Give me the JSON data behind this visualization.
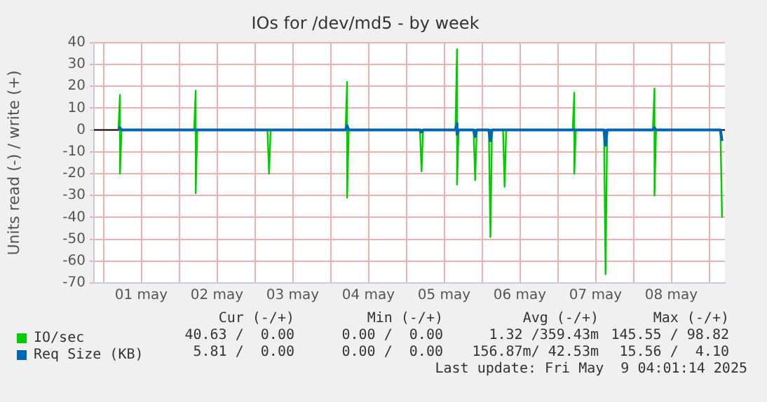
{
  "chart_data": {
    "type": "line",
    "title": "IOs for /dev/md5 - by week",
    "ylabel": "Units read (-) / write (+)",
    "xlim": [
      "2025-04-30T21:00",
      "2025-05-09T05:00"
    ],
    "xticks": [
      {
        "value": "2025-05-01T00:00",
        "label": null
      },
      {
        "value": "2025-05-01T12:00",
        "label": "01 may"
      },
      {
        "value": "2025-05-02T00:00",
        "label": null
      },
      {
        "value": "2025-05-02T12:00",
        "label": "02 may"
      },
      {
        "value": "2025-05-03T00:00",
        "label": null
      },
      {
        "value": "2025-05-03T12:00",
        "label": "03 may"
      },
      {
        "value": "2025-05-04T00:00",
        "label": null
      },
      {
        "value": "2025-05-04T12:00",
        "label": "04 may"
      },
      {
        "value": "2025-05-05T00:00",
        "label": null
      },
      {
        "value": "2025-05-05T12:00",
        "label": "05 may"
      },
      {
        "value": "2025-05-06T00:00",
        "label": null
      },
      {
        "value": "2025-05-06T12:00",
        "label": "06 may"
      },
      {
        "value": "2025-05-07T00:00",
        "label": null
      },
      {
        "value": "2025-05-07T12:00",
        "label": "07 may"
      },
      {
        "value": "2025-05-08T00:00",
        "label": null
      },
      {
        "value": "2025-05-08T12:00",
        "label": "08 may"
      },
      {
        "value": "2025-05-09T00:00",
        "label": null
      }
    ],
    "ylim": [
      -70,
      40
    ],
    "yticks": [
      -70,
      -60,
      -50,
      -40,
      -30,
      -20,
      -10,
      0,
      10,
      20,
      30,
      40
    ],
    "grid": true,
    "legend": "bottom",
    "marker": "none",
    "line_style": "solid",
    "series": [
      {
        "name": "IO/sec",
        "color": "#00cc00",
        "x": [
          "2025-05-01T04:45",
          "2025-05-01T05:15",
          "2025-05-01T05:15",
          "2025-05-01T05:45",
          "2025-05-02T04:45",
          "2025-05-02T05:15",
          "2025-05-02T05:15",
          "2025-05-02T05:45",
          "2025-05-03T04:00",
          "2025-05-03T04:30",
          "2025-05-03T05:00",
          "2025-05-04T04:45",
          "2025-05-04T05:15",
          "2025-05-04T05:15",
          "2025-05-04T05:45",
          "2025-05-05T04:20",
          "2025-05-05T04:50",
          "2025-05-05T05:20",
          "2025-05-05T15:35",
          "2025-05-05T16:05",
          "2025-05-05T16:05",
          "2025-05-05T16:35",
          "2025-05-05T21:20",
          "2025-05-05T21:50",
          "2025-05-05T22:20",
          "2025-05-06T02:10",
          "2025-05-06T02:40",
          "2025-05-06T03:10",
          "2025-05-06T06:40",
          "2025-05-06T07:10",
          "2025-05-06T07:40",
          "2025-05-07T04:45",
          "2025-05-07T05:15",
          "2025-05-07T05:15",
          "2025-05-07T05:45",
          "2025-05-07T14:40",
          "2025-05-07T15:10",
          "2025-05-07T15:40",
          "2025-05-08T06:10",
          "2025-05-08T06:40",
          "2025-05-08T06:40",
          "2025-05-08T07:10",
          "2025-05-09T03:35",
          "2025-05-09T04:05"
        ],
        "values": [
          0,
          16,
          -20,
          0,
          0,
          18,
          -29,
          0,
          0,
          -20,
          0,
          0,
          22,
          -31,
          0,
          0,
          -19,
          0,
          0,
          37,
          -25,
          0,
          0,
          -23,
          0,
          0,
          -49,
          0,
          0,
          -26,
          0,
          0,
          17,
          -20,
          0,
          0,
          -66,
          0,
          0,
          19,
          -30,
          0,
          0,
          -40
        ]
      },
      {
        "name": "Req Size (KB)",
        "color": "#0066b3",
        "x": [
          "2025-05-01T04:45",
          "2025-05-01T05:15",
          "2025-05-01T05:45",
          "2025-05-04T04:45",
          "2025-05-04T05:15",
          "2025-05-04T05:45",
          "2025-05-05T04:20",
          "2025-05-05T04:50",
          "2025-05-05T05:20",
          "2025-05-05T15:35",
          "2025-05-05T16:05",
          "2025-05-05T16:05",
          "2025-05-05T16:35",
          "2025-05-05T21:20",
          "2025-05-05T21:50",
          "2025-05-05T22:20",
          "2025-05-06T02:10",
          "2025-05-06T02:40",
          "2025-05-06T03:10",
          "2025-05-07T14:40",
          "2025-05-07T15:10",
          "2025-05-07T15:40",
          "2025-05-08T06:10",
          "2025-05-08T06:40",
          "2025-05-08T07:10",
          "2025-05-09T03:35",
          "2025-05-09T04:05"
        ],
        "values": [
          0,
          1,
          0,
          0,
          2,
          0,
          0,
          -1,
          0,
          0,
          3,
          -2,
          0,
          0,
          -3,
          0,
          0,
          -5,
          0,
          0,
          -7,
          0,
          0,
          1,
          0,
          0,
          -5
        ]
      }
    ],
    "ref_lines": [
      {
        "axis": "y",
        "value": 0,
        "color": "#000000"
      }
    ],
    "annotations": [
      "Cur (-/+)",
      "Min (-/+)",
      "Avg (-/+)",
      "Max (-/+)",
      "40.63 /  0.00",
      "0.00 /  0.00",
      "1.32 /359.43m",
      "145.55 / 98.82",
      "5.81 /  0.00",
      "0.00 /  0.00",
      "156.87m/ 42.53m",
      "15.56 /  4.10",
      "Last update: Fri May  9 04:01:14 2025"
    ]
  }
}
